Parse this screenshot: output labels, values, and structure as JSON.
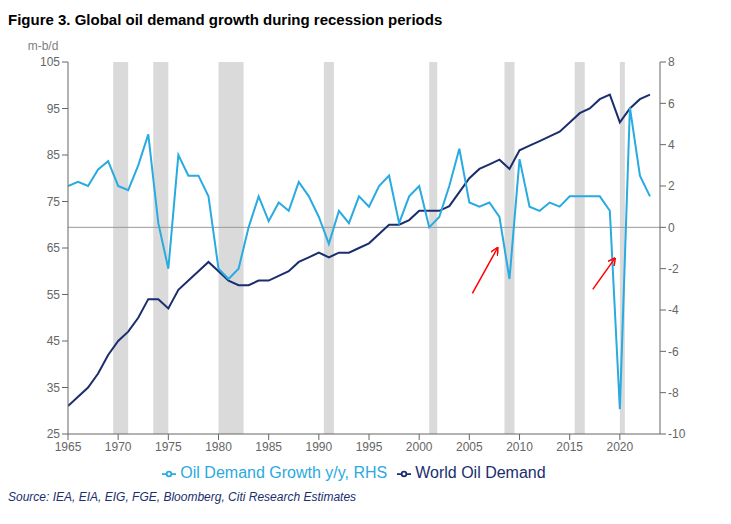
{
  "chart_data": {
    "type": "line",
    "title": "Figure 3. Global oil demand growth during recession periods",
    "source": "Source: IEA, EIA, EIG, FGE, Bloomberg, Citi Research Estimates",
    "ylabel": "m-b/d",
    "xlim": [
      1965,
      2024
    ],
    "xticks": [
      1965,
      1970,
      1975,
      1980,
      1985,
      1990,
      1995,
      2000,
      2005,
      2010,
      2015,
      2020
    ],
    "ylim": [
      25,
      105
    ],
    "yticks": [
      25,
      35,
      45,
      55,
      65,
      75,
      85,
      95,
      105
    ],
    "y2lim": [
      -10,
      8
    ],
    "y2ticks": [
      -10,
      -8,
      -6,
      -4,
      -2,
      0,
      2,
      4,
      6,
      8
    ],
    "grid": false,
    "legend": "bottom",
    "x": [
      1965,
      1966,
      1967,
      1968,
      1969,
      1970,
      1971,
      1972,
      1973,
      1974,
      1975,
      1976,
      1977,
      1978,
      1979,
      1980,
      1981,
      1982,
      1983,
      1984,
      1985,
      1986,
      1987,
      1988,
      1989,
      1990,
      1991,
      1992,
      1993,
      1994,
      1995,
      1996,
      1997,
      1998,
      1999,
      2000,
      2001,
      2002,
      2003,
      2004,
      2005,
      2006,
      2007,
      2008,
      2009,
      2010,
      2011,
      2012,
      2013,
      2014,
      2015,
      2016,
      2017,
      2018,
      2019,
      2020,
      2021,
      2022,
      2023
    ],
    "series": [
      {
        "name": "World Oil Demand",
        "color": "#1a2e6e",
        "axis": "y",
        "values": [
          31,
          33,
          35,
          38,
          42,
          45,
          47,
          50,
          54,
          54,
          52,
          56,
          58,
          60,
          62,
          60,
          58,
          57,
          57,
          58,
          58,
          59,
          60,
          62,
          63,
          64,
          63,
          64,
          64,
          65,
          66,
          68,
          70,
          70,
          71,
          73,
          73,
          73,
          74,
          77,
          80,
          82,
          83,
          84,
          82,
          86,
          87,
          88,
          89,
          90,
          92,
          94,
          95,
          97,
          98,
          92,
          95,
          97,
          98
        ]
      },
      {
        "name": "Oil Demand Growth y/y, RHS",
        "color": "#29aae1",
        "axis": "y2",
        "values": [
          2.0,
          2.2,
          2.0,
          2.8,
          3.2,
          2.0,
          1.8,
          3.0,
          4.5,
          0.2,
          -2.0,
          3.5,
          2.5,
          2.5,
          1.5,
          -2.0,
          -2.5,
          -2.0,
          0.0,
          1.5,
          0.3,
          1.2,
          0.8,
          2.2,
          1.5,
          0.5,
          -0.8,
          0.8,
          0.2,
          1.5,
          1.0,
          2.0,
          2.5,
          0.2,
          1.5,
          2.0,
          0.0,
          0.5,
          2.0,
          3.8,
          1.2,
          1.0,
          1.2,
          0.5,
          -2.5,
          3.3,
          1.0,
          0.8,
          1.2,
          1.0,
          1.5,
          1.5,
          1.5,
          1.5,
          0.8,
          -8.8,
          5.8,
          2.5,
          1.5
        ]
      }
    ],
    "recession_bands": {
      "color": "#d3d3d3",
      "ranges": [
        [
          1969.5,
          1971.0
        ],
        [
          1973.5,
          1975.0
        ],
        [
          1980.0,
          1982.5
        ],
        [
          1990.5,
          1991.5
        ],
        [
          2001.0,
          2001.8
        ],
        [
          2008.5,
          2009.5
        ],
        [
          2015.5,
          2016.5
        ],
        [
          2020.0,
          2020.5
        ]
      ]
    },
    "hline": {
      "value": 0,
      "axis": "y2",
      "color": "#999999"
    },
    "arrows": {
      "color": "red",
      "axis": "y2",
      "items": [
        {
          "x_tail": 2005.3,
          "y_tail": -3.2,
          "x_head": 2007.8,
          "y_head": -1.0
        },
        {
          "x_tail": 2017.3,
          "y_tail": -3.0,
          "x_head": 2019.5,
          "y_head": -1.5
        }
      ]
    }
  }
}
